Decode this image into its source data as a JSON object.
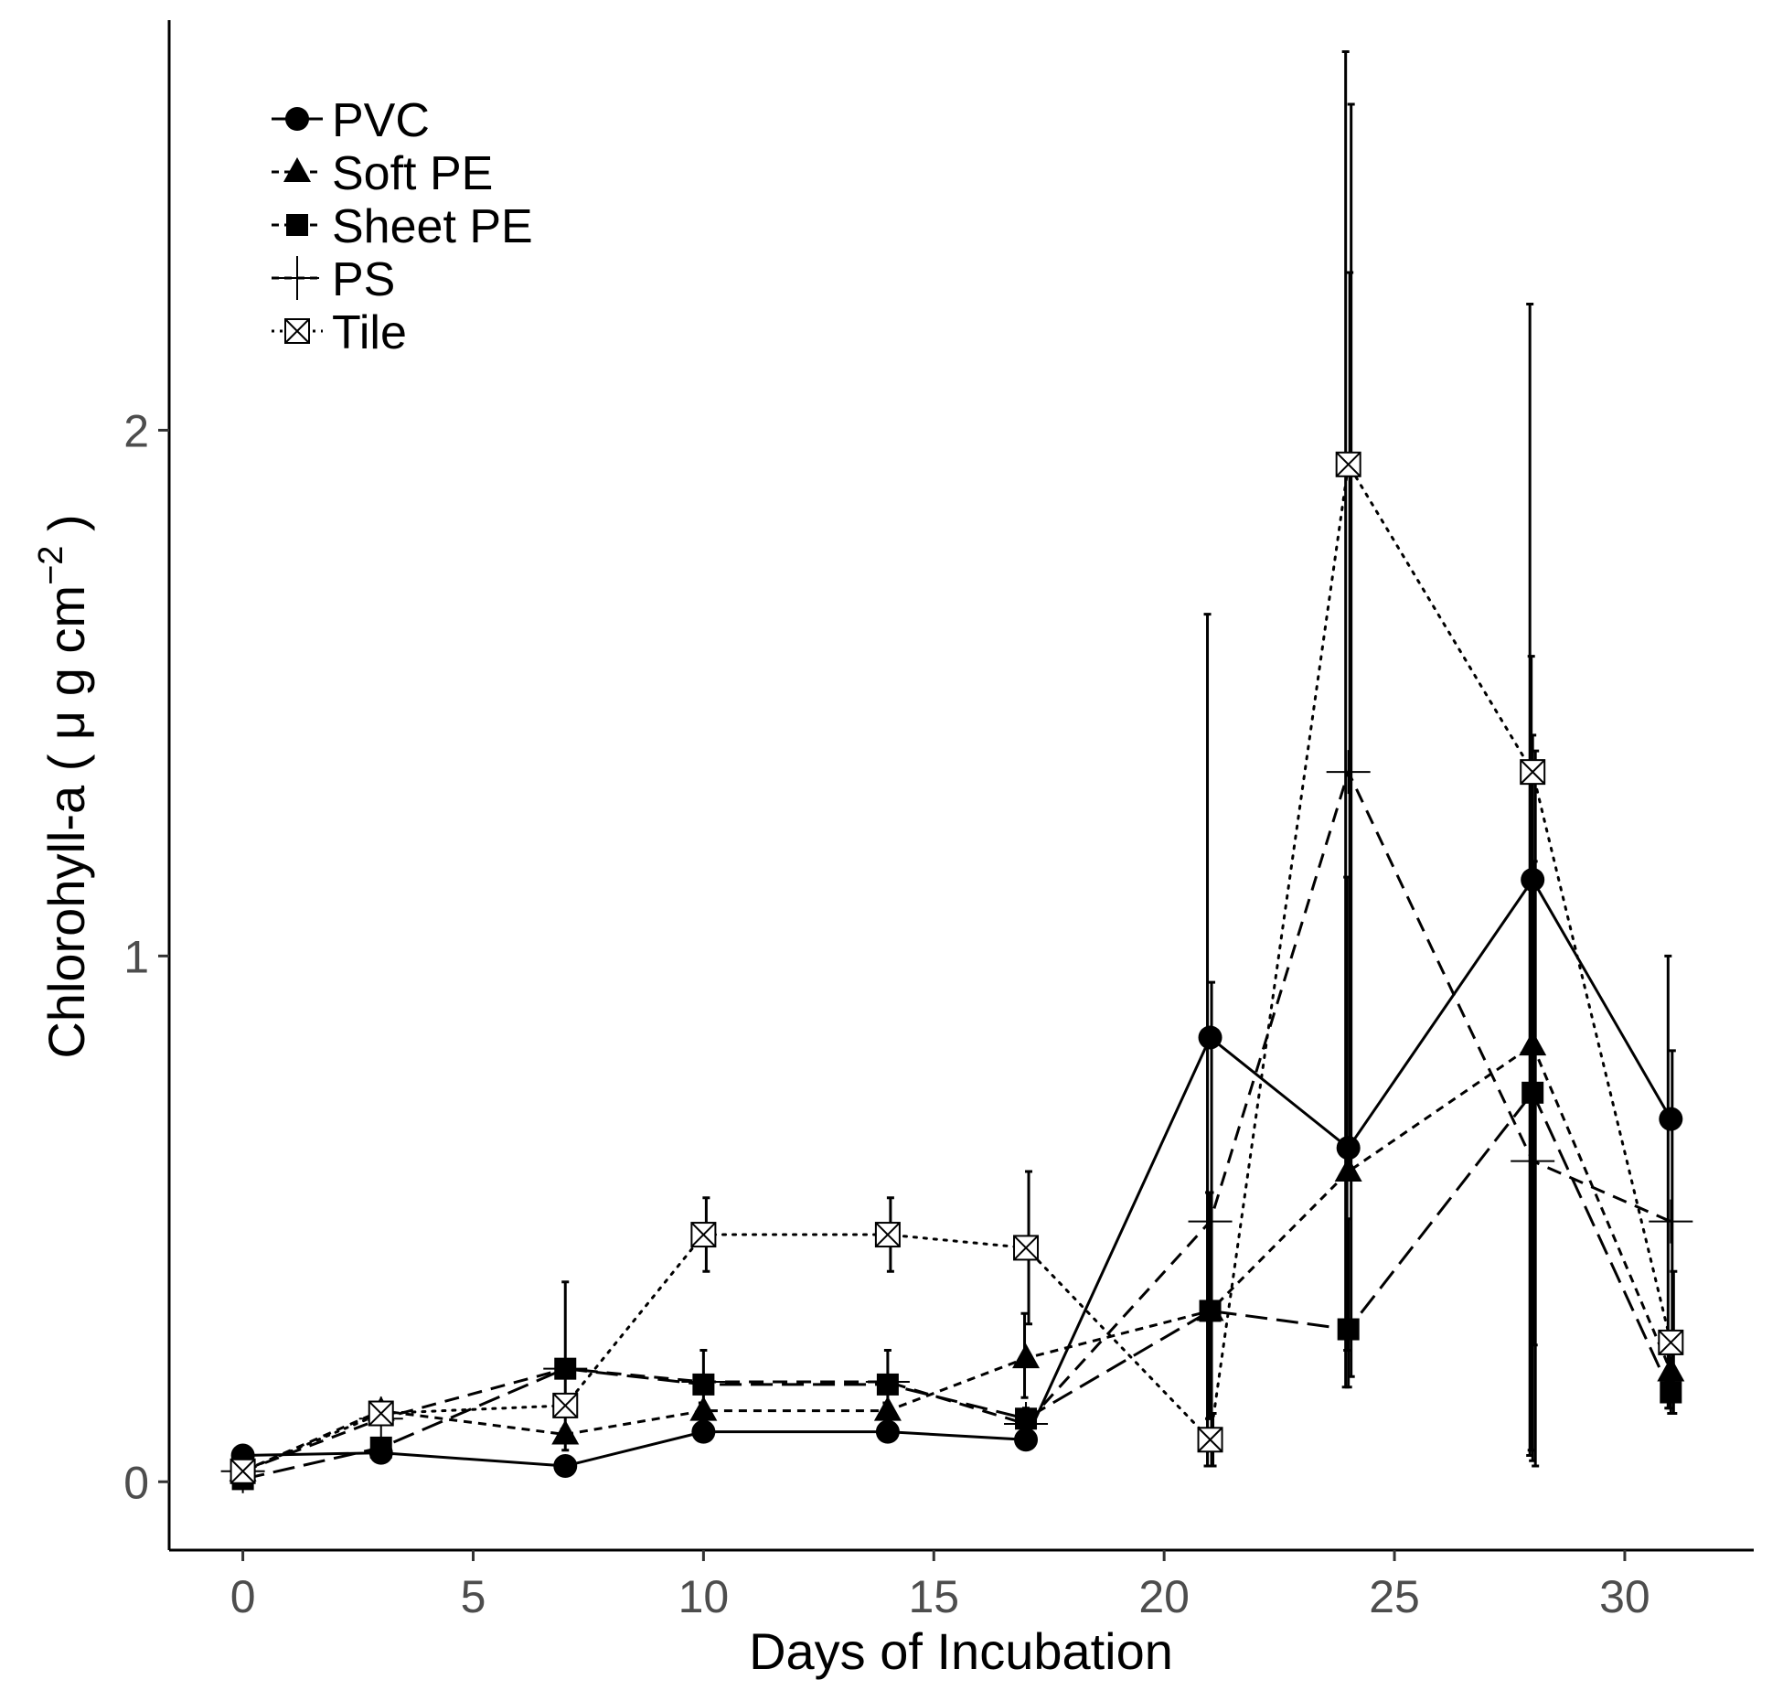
{
  "chart_data": {
    "type": "line",
    "xlabel": "Days of Incubation",
    "ylabel": {
      "prefix": "Chlorohyll-a ( ",
      "mu": "μ",
      "unit": " g cm",
      "exponent": "−2",
      "suffix": " )"
    },
    "xlim": [
      -1.6,
      32.8
    ],
    "ylim": [
      -0.13,
      2.78
    ],
    "x_ticks": [
      0,
      5,
      10,
      15,
      20,
      25,
      30
    ],
    "y_ticks": [
      0,
      1,
      2
    ],
    "x_tick_labels": [
      "0",
      "5",
      "10",
      "15",
      "20",
      "25",
      "30"
    ],
    "y_tick_labels": [
      "0",
      "1",
      "2"
    ],
    "grid": false,
    "legend_position": "top-left",
    "x": [
      0,
      3,
      7,
      10,
      14,
      17,
      21,
      24,
      28,
      31
    ],
    "series": [
      {
        "name": "PVC",
        "marker": "circle",
        "line": "solid",
        "values": [
          0.05,
          0.055,
          0.03,
          0.095,
          0.095,
          0.08,
          0.845,
          0.635,
          1.145,
          0.69
        ],
        "error_low": [
          0.04,
          0.045,
          0.02,
          0.08,
          0.08,
          0.07,
          0.03,
          0.18,
          0.05,
          0.14
        ],
        "error_high": [
          0.06,
          0.065,
          0.04,
          0.11,
          0.11,
          0.09,
          1.65,
          2.72,
          2.24,
          1.0
        ]
      },
      {
        "name": "Soft PE",
        "marker": "triangle",
        "line": "short-dash",
        "values": [
          0.02,
          0.135,
          0.09,
          0.135,
          0.135,
          0.235,
          0.325,
          0.59,
          0.83,
          0.21
        ],
        "error_low": [
          0.01,
          0.12,
          0.08,
          0.12,
          0.12,
          0.16,
          0.12,
          0.25,
          0.06,
          0.14
        ],
        "error_high": [
          0.03,
          0.15,
          0.1,
          0.15,
          0.15,
          0.32,
          0.55,
          1.15,
          1.57,
          0.28
        ]
      },
      {
        "name": "Sheet PE",
        "marker": "square",
        "line": "long-dash",
        "values": [
          0.005,
          0.065,
          0.215,
          0.185,
          0.185,
          0.12,
          0.325,
          0.29,
          0.74,
          0.17
        ],
        "error_low": [
          0.0,
          0.055,
          0.06,
          0.12,
          0.12,
          0.1,
          0.12,
          0.18,
          0.04,
          0.13
        ],
        "error_high": [
          0.01,
          0.075,
          0.38,
          0.25,
          0.25,
          0.14,
          0.55,
          0.5,
          1.42,
          0.2
        ]
      },
      {
        "name": "PS",
        "marker": "plus",
        "line": "dash",
        "values": [
          0.02,
          0.12,
          0.215,
          0.19,
          0.19,
          0.11,
          0.495,
          1.35,
          0.61,
          0.495
        ],
        "error_low": [
          0.01,
          0.11,
          0.2,
          0.18,
          0.18,
          0.09,
          0.03,
          0.63,
          0.26,
          0.16
        ],
        "error_high": [
          0.03,
          0.13,
          0.23,
          0.2,
          0.2,
          0.12,
          0.95,
          2.3,
          1.18,
          0.82
        ]
      },
      {
        "name": "Tile",
        "marker": "boxed-x",
        "line": "dotted",
        "values": [
          0.02,
          0.13,
          0.145,
          0.47,
          0.47,
          0.445,
          0.08,
          1.935,
          1.35,
          0.265
        ],
        "error_low": [
          0.01,
          0.12,
          0.13,
          0.4,
          0.4,
          0.3,
          0.03,
          0.2,
          0.03,
          0.13
        ],
        "error_high": [
          0.03,
          0.14,
          0.16,
          0.54,
          0.54,
          0.59,
          0.13,
          2.62,
          1.39,
          0.4
        ]
      }
    ]
  }
}
